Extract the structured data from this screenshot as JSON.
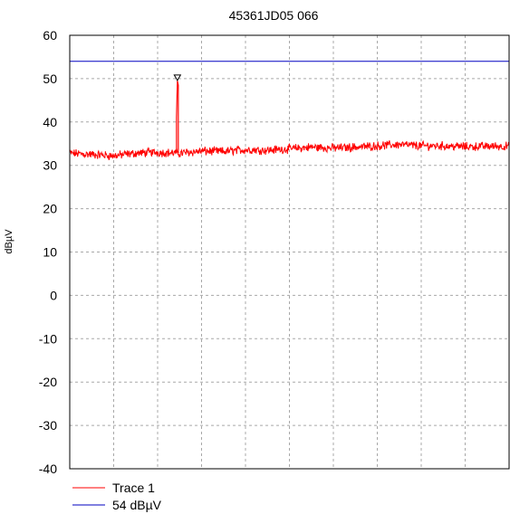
{
  "chart_data": {
    "type": "line",
    "title": "45361JD05 066",
    "xlabel": "",
    "ylabel": "dBµV",
    "ylim": [
      -40,
      60
    ],
    "yticks": [
      60,
      50,
      40,
      30,
      20,
      10,
      0,
      -10,
      -20,
      -30,
      -40
    ],
    "x_divisions": 10,
    "grid": true,
    "legend_position": "bottom-left",
    "series": [
      {
        "name": "Trace 1",
        "color": "#ff0000",
        "style": "noisy-line",
        "baseline": [
          [
            0.0,
            32.8
          ],
          [
            0.05,
            32.5
          ],
          [
            0.1,
            32.2
          ],
          [
            0.15,
            32.8
          ],
          [
            0.2,
            33.0
          ],
          [
            0.25,
            32.8
          ],
          [
            0.3,
            33.3
          ],
          [
            0.35,
            33.2
          ],
          [
            0.4,
            33.6
          ],
          [
            0.45,
            33.5
          ],
          [
            0.5,
            33.8
          ],
          [
            0.55,
            34.2
          ],
          [
            0.6,
            34.0
          ],
          [
            0.65,
            34.2
          ],
          [
            0.7,
            34.5
          ],
          [
            0.75,
            34.8
          ],
          [
            0.8,
            34.5
          ],
          [
            0.85,
            34.5
          ],
          [
            0.9,
            34.3
          ],
          [
            0.95,
            34.4
          ],
          [
            1.0,
            34.4
          ]
        ],
        "noise_amplitude": 1.6,
        "spike": {
          "x": 0.245,
          "peak": 49.5,
          "mid": 41.0
        },
        "marker": {
          "x": 0.245,
          "y": 50.0,
          "shape": "triangle-down"
        }
      },
      {
        "name": "54 dBµV",
        "color": "#0000c0",
        "style": "horizontal-limit",
        "value": 54
      }
    ]
  },
  "legend": [
    {
      "label": "Trace 1",
      "color": "#ff0000"
    },
    {
      "label": "54 dBµV",
      "color": "#0000c0"
    }
  ]
}
